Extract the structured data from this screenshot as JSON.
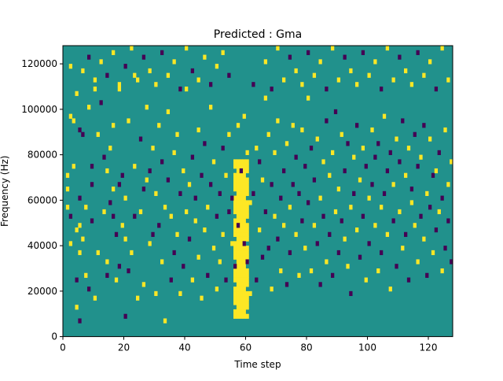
{
  "chart_data": {
    "type": "heatmap",
    "title": "Predicted : Gma",
    "xlabel": "Time step",
    "ylabel": "Frequency (Hz)",
    "xlim": [
      0,
      128
    ],
    "ylim": [
      0,
      128000
    ],
    "x_ticks": [
      0,
      20,
      40,
      60,
      80,
      100,
      120
    ],
    "x_tick_labels": [
      "0",
      "20",
      "40",
      "60",
      "80",
      "100",
      "120"
    ],
    "y_ticks": [
      0,
      20000,
      40000,
      60000,
      80000,
      100000,
      120000
    ],
    "y_tick_labels": [
      "0",
      "20000",
      "40000",
      "60000",
      "80000",
      "100000",
      "120000"
    ],
    "grid": false,
    "legend": "none",
    "value_levels": [
      -1,
      0,
      1
    ],
    "colors": {
      "-1": "#440154",
      "0": "#21918c",
      "1": "#fde725"
    },
    "bins": {
      "time_steps": 128,
      "frequency_bins": 64,
      "bin_width_hz": 2000
    },
    "note_values": "bins are 0 unless listed; events give [time_step, frequency_bin, value]",
    "vertical_band": {
      "time_steps": [
        56,
        60
      ],
      "frequency_bins": [
        4,
        38
      ],
      "value": 1
    },
    "events": [
      [
        1,
        32,
        1
      ],
      [
        1,
        35,
        1
      ],
      [
        1,
        28,
        1
      ],
      [
        2,
        59,
        1
      ],
      [
        2,
        48,
        1
      ],
      [
        2,
        26,
        -1
      ],
      [
        2,
        20,
        1
      ],
      [
        3,
        47,
        1
      ],
      [
        3,
        37,
        1
      ],
      [
        4,
        23,
        1
      ],
      [
        4,
        12,
        -1
      ],
      [
        4,
        6,
        1
      ],
      [
        4,
        53,
        1
      ],
      [
        5,
        45,
        -1
      ],
      [
        5,
        30,
        -1
      ],
      [
        5,
        24,
        1
      ],
      [
        5,
        18,
        1
      ],
      [
        5,
        3,
        -1
      ],
      [
        6,
        44,
        -1
      ],
      [
        6,
        21,
        1
      ],
      [
        7,
        28,
        1
      ],
      [
        7,
        13,
        1
      ],
      [
        8,
        50,
        1
      ],
      [
        8,
        10,
        -1
      ],
      [
        9,
        33,
        -1
      ],
      [
        9,
        25,
        -1
      ],
      [
        9,
        37,
        -1
      ],
      [
        10,
        56,
        1
      ],
      [
        10,
        8,
        1
      ],
      [
        11,
        18,
        1
      ],
      [
        11,
        44,
        1
      ],
      [
        12,
        51,
        -1
      ],
      [
        13,
        27,
        1
      ],
      [
        13,
        39,
        -1
      ],
      [
        14,
        16,
        1
      ],
      [
        14,
        36,
        1
      ],
      [
        14,
        13,
        -1
      ],
      [
        15,
        41,
        1
      ],
      [
        15,
        29,
        -1
      ],
      [
        16,
        26,
        -1
      ],
      [
        16,
        46,
        1
      ],
      [
        16,
        32,
        1
      ],
      [
        17,
        12,
        1
      ],
      [
        17,
        22,
        -1
      ],
      [
        18,
        54,
        1
      ],
      [
        18,
        33,
        -1
      ],
      [
        18,
        15,
        -1
      ],
      [
        19,
        24,
        1
      ],
      [
        19,
        35,
        -1
      ],
      [
        20,
        21,
        1
      ],
      [
        20,
        30,
        1
      ],
      [
        20,
        4,
        -1
      ],
      [
        21,
        47,
        1
      ],
      [
        21,
        14,
        -1
      ],
      [
        22,
        18,
        1
      ],
      [
        23,
        57,
        1
      ],
      [
        23,
        26,
        -1
      ],
      [
        23,
        37,
        1
      ],
      [
        24,
        8,
        1
      ],
      [
        25,
        43,
        -1
      ],
      [
        25,
        27,
        1
      ],
      [
        26,
        11,
        1
      ],
      [
        26,
        32,
        -1
      ],
      [
        27,
        50,
        1
      ],
      [
        27,
        34,
        1
      ],
      [
        28,
        20,
        1
      ],
      [
        28,
        36,
        -1
      ],
      [
        29,
        41,
        1
      ],
      [
        29,
        22,
        -1
      ],
      [
        30,
        31,
        1
      ],
      [
        30,
        9,
        1
      ],
      [
        31,
        24,
        -1
      ],
      [
        31,
        46,
        1
      ],
      [
        32,
        16,
        1
      ],
      [
        32,
        38,
        -1
      ],
      [
        33,
        28,
        1
      ],
      [
        33,
        3,
        1
      ],
      [
        34,
        49,
        1
      ],
      [
        34,
        34,
        -1
      ],
      [
        35,
        12,
        -1
      ],
      [
        35,
        26,
        1
      ],
      [
        36,
        40,
        1
      ],
      [
        36,
        18,
        -1
      ],
      [
        37,
        22,
        1
      ],
      [
        37,
        44,
        1
      ],
      [
        38,
        9,
        1
      ],
      [
        38,
        31,
        -1
      ],
      [
        39,
        36,
        1
      ],
      [
        39,
        15,
        -1
      ],
      [
        40,
        54,
        1
      ],
      [
        40,
        27,
        1
      ],
      [
        41,
        21,
        -1
      ],
      [
        41,
        33,
        1
      ],
      [
        42,
        12,
        1
      ],
      [
        42,
        39,
        -1
      ],
      [
        43,
        25,
        1
      ],
      [
        43,
        30,
        -1
      ],
      [
        44,
        17,
        1
      ],
      [
        44,
        45,
        1
      ],
      [
        45,
        35,
        -1
      ],
      [
        45,
        8,
        1
      ],
      [
        46,
        42,
        -1
      ],
      [
        46,
        23,
        1
      ],
      [
        47,
        28,
        1
      ],
      [
        47,
        13,
        -1
      ],
      [
        48,
        50,
        1
      ],
      [
        48,
        33,
        -1
      ],
      [
        49,
        19,
        1
      ],
      [
        49,
        38,
        1
      ],
      [
        50,
        26,
        -1
      ],
      [
        50,
        10,
        1
      ],
      [
        51,
        31,
        -1
      ],
      [
        51,
        16,
        1
      ],
      [
        52,
        22,
        1
      ],
      [
        52,
        41,
        -1
      ],
      [
        53,
        35,
        1
      ],
      [
        53,
        12,
        -1
      ],
      [
        54,
        44,
        1
      ],
      [
        54,
        27,
        -1
      ],
      [
        55,
        20,
        1
      ],
      [
        55,
        30,
        -1
      ],
      [
        56,
        15,
        -1
      ],
      [
        57,
        46,
        1
      ],
      [
        57,
        24,
        -1
      ],
      [
        58,
        11,
        1
      ],
      [
        58,
        36,
        -1
      ],
      [
        59,
        48,
        1
      ],
      [
        59,
        20,
        -1
      ],
      [
        60,
        40,
        1
      ],
      [
        60,
        16,
        -1
      ],
      [
        61,
        29,
        1
      ],
      [
        61,
        9,
        1
      ],
      [
        62,
        31,
        -1
      ],
      [
        62,
        55,
        -1
      ],
      [
        63,
        41,
        1
      ],
      [
        63,
        12,
        -1
      ],
      [
        64,
        23,
        1
      ],
      [
        64,
        38,
        -1
      ],
      [
        65,
        34,
        1
      ],
      [
        65,
        17,
        -1
      ],
      [
        66,
        52,
        1
      ],
      [
        66,
        27,
        -1
      ],
      [
        67,
        44,
        1
      ],
      [
        67,
        19,
        -1
      ],
      [
        68,
        10,
        1
      ],
      [
        68,
        33,
        -1
      ],
      [
        69,
        40,
        1
      ],
      [
        69,
        26,
        1
      ],
      [
        70,
        21,
        -1
      ],
      [
        70,
        47,
        1
      ],
      [
        71,
        30,
        -1
      ],
      [
        71,
        14,
        1
      ],
      [
        72,
        36,
        -1
      ],
      [
        72,
        24,
        1
      ],
      [
        73,
        42,
        1
      ],
      [
        73,
        11,
        -1
      ],
      [
        74,
        28,
        1
      ],
      [
        74,
        18,
        -1
      ],
      [
        75,
        46,
        1
      ],
      [
        75,
        33,
        -1
      ],
      [
        76,
        22,
        1
      ],
      [
        76,
        39,
        -1
      ],
      [
        77,
        13,
        1
      ],
      [
        77,
        31,
        -1
      ],
      [
        78,
        45,
        1
      ],
      [
        78,
        25,
        -1
      ],
      [
        79,
        19,
        1
      ],
      [
        79,
        37,
        -1
      ],
      [
        80,
        52,
        1
      ],
      [
        80,
        29,
        -1
      ],
      [
        81,
        14,
        1
      ],
      [
        81,
        41,
        -1
      ],
      [
        82,
        24,
        1
      ],
      [
        82,
        34,
        -1
      ],
      [
        83,
        43,
        1
      ],
      [
        83,
        20,
        -1
      ],
      [
        84,
        30,
        1
      ],
      [
        84,
        11,
        -1
      ],
      [
        85,
        38,
        1
      ],
      [
        85,
        26,
        -1
      ],
      [
        86,
        16,
        1
      ],
      [
        86,
        47,
        -1
      ],
      [
        87,
        35,
        1
      ],
      [
        87,
        22,
        -1
      ],
      [
        88,
        40,
        1
      ],
      [
        88,
        13,
        -1
      ],
      [
        89,
        27,
        1
      ],
      [
        89,
        49,
        -1
      ],
      [
        90,
        32,
        1
      ],
      [
        90,
        18,
        -1
      ],
      [
        91,
        44,
        1
      ],
      [
        91,
        25,
        -1
      ],
      [
        92,
        21,
        1
      ],
      [
        92,
        36,
        -1
      ],
      [
        93,
        15,
        1
      ],
      [
        93,
        42,
        -1
      ],
      [
        94,
        28,
        1
      ],
      [
        94,
        9,
        -1
      ],
      [
        95,
        39,
        1
      ],
      [
        95,
        31,
        -1
      ],
      [
        96,
        23,
        1
      ],
      [
        96,
        46,
        -1
      ],
      [
        97,
        34,
        1
      ],
      [
        97,
        17,
        -1
      ],
      [
        98,
        41,
        1
      ],
      [
        98,
        26,
        -1
      ],
      [
        99,
        12,
        1
      ],
      [
        99,
        37,
        -1
      ],
      [
        100,
        30,
        1
      ],
      [
        100,
        20,
        -1
      ],
      [
        101,
        45,
        1
      ],
      [
        101,
        33,
        -1
      ],
      [
        102,
        24,
        1
      ],
      [
        102,
        39,
        -1
      ],
      [
        103,
        14,
        1
      ],
      [
        103,
        42,
        -1
      ],
      [
        104,
        28,
        1
      ],
      [
        104,
        18,
        -1
      ],
      [
        105,
        48,
        1
      ],
      [
        105,
        31,
        -1
      ],
      [
        106,
        22,
        1
      ],
      [
        106,
        36,
        -1
      ],
      [
        107,
        10,
        1
      ],
      [
        107,
        40,
        -1
      ],
      [
        108,
        33,
        1
      ],
      [
        108,
        25,
        -1
      ],
      [
        109,
        43,
        1
      ],
      [
        109,
        15,
        -1
      ],
      [
        110,
        27,
        1
      ],
      [
        110,
        38,
        -1
      ],
      [
        111,
        19,
        1
      ],
      [
        111,
        47,
        -1
      ],
      [
        112,
        35,
        1
      ],
      [
        112,
        22,
        -1
      ],
      [
        113,
        41,
        1
      ],
      [
        113,
        12,
        -1
      ],
      [
        114,
        29,
        1
      ],
      [
        114,
        32,
        -1
      ],
      [
        115,
        24,
        1
      ],
      [
        115,
        44,
        -1
      ],
      [
        116,
        16,
        1
      ],
      [
        116,
        37,
        -1
      ],
      [
        117,
        39,
        1
      ],
      [
        117,
        26,
        -1
      ],
      [
        118,
        21,
        1
      ],
      [
        118,
        46,
        -1
      ],
      [
        119,
        31,
        1
      ],
      [
        119,
        13,
        -1
      ],
      [
        120,
        43,
        1
      ],
      [
        120,
        28,
        -1
      ],
      [
        121,
        18,
        1
      ],
      [
        121,
        35,
        -1
      ],
      [
        122,
        36,
        1
      ],
      [
        122,
        23,
        -1
      ],
      [
        123,
        27,
        1
      ],
      [
        123,
        40,
        -1
      ],
      [
        124,
        14,
        1
      ],
      [
        124,
        30,
        -1
      ],
      [
        125,
        45,
        1
      ],
      [
        125,
        19,
        -1
      ],
      [
        126,
        33,
        1
      ],
      [
        126,
        25,
        -1
      ],
      [
        127,
        38,
        1
      ],
      [
        127,
        16,
        -1
      ],
      [
        6,
        58,
        1
      ],
      [
        8,
        61,
        -1
      ],
      [
        10,
        54,
        1
      ],
      [
        12,
        60,
        1
      ],
      [
        14,
        57,
        -1
      ],
      [
        16,
        62,
        1
      ],
      [
        18,
        55,
        1
      ],
      [
        20,
        59,
        -1
      ],
      [
        22,
        63,
        1
      ],
      [
        24,
        56,
        1
      ],
      [
        26,
        61,
        -1
      ],
      [
        28,
        58,
        1
      ],
      [
        30,
        55,
        1
      ],
      [
        32,
        62,
        -1
      ],
      [
        34,
        57,
        1
      ],
      [
        36,
        60,
        1
      ],
      [
        38,
        54,
        -1
      ],
      [
        40,
        63,
        1
      ],
      [
        42,
        58,
        -1
      ],
      [
        44,
        56,
        1
      ],
      [
        46,
        61,
        1
      ],
      [
        48,
        55,
        -1
      ],
      [
        50,
        59,
        1
      ],
      [
        52,
        62,
        1
      ],
      [
        54,
        57,
        -1
      ],
      [
        66,
        60,
        1
      ],
      [
        68,
        54,
        -1
      ],
      [
        70,
        63,
        1
      ],
      [
        72,
        56,
        1
      ],
      [
        74,
        61,
        -1
      ],
      [
        76,
        58,
        1
      ],
      [
        78,
        55,
        1
      ],
      [
        80,
        62,
        -1
      ],
      [
        82,
        57,
        1
      ],
      [
        84,
        60,
        1
      ],
      [
        86,
        54,
        -1
      ],
      [
        88,
        63,
        1
      ],
      [
        90,
        56,
        1
      ],
      [
        92,
        61,
        -1
      ],
      [
        94,
        58,
        1
      ],
      [
        96,
        55,
        1
      ],
      [
        98,
        62,
        -1
      ],
      [
        100,
        57,
        1
      ],
      [
        102,
        60,
        1
      ],
      [
        104,
        54,
        -1
      ],
      [
        106,
        63,
        1
      ],
      [
        108,
        56,
        1
      ],
      [
        110,
        61,
        -1
      ],
      [
        112,
        58,
        1
      ],
      [
        114,
        55,
        1
      ],
      [
        116,
        62,
        -1
      ],
      [
        118,
        57,
        1
      ],
      [
        120,
        60,
        1
      ],
      [
        122,
        54,
        -1
      ],
      [
        124,
        63,
        1
      ],
      [
        126,
        56,
        1
      ]
    ]
  }
}
